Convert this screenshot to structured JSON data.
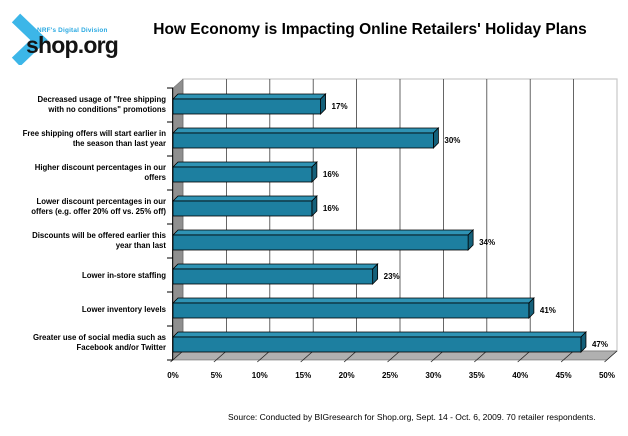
{
  "header": {
    "brand": {
      "tagline": "NRF's Digital Division",
      "name": "shop.org"
    }
  },
  "chart_data": {
    "type": "bar",
    "orientation": "horizontal",
    "style": "3d",
    "title": "How Economy is Impacting Online Retailers' Holiday Plans",
    "categories": [
      "Decreased usage of \"free shipping\nwith no conditions\" promotions",
      "Free shipping offers will start earlier in\nthe season than last year",
      "Higher discount percentages in our\noffers",
      "Lower discount percentages in our\noffers (e.g. offer 20% off vs. 25% off)",
      "Discounts will be offered earlier this\nyear than last",
      "Lower in-store staffing",
      "Lower inventory levels",
      "Greater use of social media such as\nFacebook and/or Twitter"
    ],
    "values": [
      17,
      30,
      16,
      16,
      34,
      23,
      41,
      47
    ],
    "value_labels": [
      "17%",
      "30%",
      "16%",
      "16%",
      "34%",
      "23%",
      "41%",
      "47%"
    ],
    "x_ticks": [
      "0%",
      "5%",
      "10%",
      "15%",
      "20%",
      "25%",
      "30%",
      "35%",
      "40%",
      "45%",
      "50%"
    ],
    "xlim": [
      0,
      50
    ],
    "grid": true,
    "legend": null,
    "colors": {
      "bar_face": "#1d7fa0",
      "bar_top": "#2f93b4",
      "bar_side": "#14607a",
      "outline": "#000000",
      "wall": "#8f8f8f",
      "floor": "#b0b0b0",
      "gridline": "#3f3f3f",
      "wall_border": "#c8c8c8"
    }
  },
  "footer": {
    "source": "Source: Conducted by BIGresearch for Shop.org, Sept. 14 - Oct. 6, 2009. 70 retailer respondents."
  }
}
